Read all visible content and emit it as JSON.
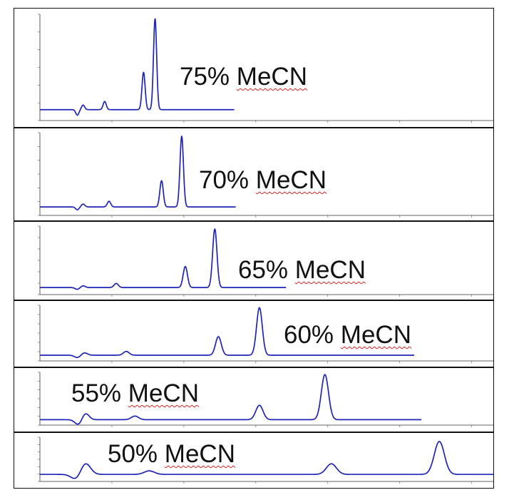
{
  "chart_data": [
    {
      "type": "line",
      "title": "75% MeCN",
      "title_parts": {
        "pct": "75%",
        "solvent": "MeCN"
      },
      "peaks": [
        {
          "x": 0.52,
          "y": -0.06
        },
        {
          "x": 0.6,
          "y": 0.05
        },
        {
          "x": 0.9,
          "y": 0.09
        },
        {
          "x": 1.44,
          "y": 0.41
        },
        {
          "x": 1.6,
          "y": 1.0
        }
      ],
      "xlim": [
        0,
        6.3
      ],
      "trace_end": 2.7,
      "ylim": [
        -0.12,
        1.05
      ],
      "peak_width": 0.022
    },
    {
      "type": "line",
      "title": "70% MeCN",
      "title_parts": {
        "pct": "70%",
        "solvent": "MeCN"
      },
      "peaks": [
        {
          "x": 0.52,
          "y": -0.04
        },
        {
          "x": 0.6,
          "y": 0.04
        },
        {
          "x": 0.96,
          "y": 0.08
        },
        {
          "x": 1.69,
          "y": 0.37
        },
        {
          "x": 1.97,
          "y": 1.0
        }
      ],
      "xlim": [
        0,
        6.3
      ],
      "trace_end": 2.72,
      "ylim": [
        -0.12,
        1.05
      ],
      "peak_width": 0.024
    },
    {
      "type": "line",
      "title": "65% MeCN",
      "title_parts": {
        "pct": "65%",
        "solvent": "MeCN"
      },
      "peaks": [
        {
          "x": 0.52,
          "y": -0.03
        },
        {
          "x": 0.6,
          "y": 0.03
        },
        {
          "x": 1.06,
          "y": 0.07
        },
        {
          "x": 2.02,
          "y": 0.36
        },
        {
          "x": 2.43,
          "y": 1.0
        }
      ],
      "xlim": [
        0,
        6.3
      ],
      "trace_end": 3.42,
      "ylim": [
        -0.12,
        1.05
      ],
      "peak_width": 0.03
    },
    {
      "type": "line",
      "title": "60% MeCN",
      "title_parts": {
        "pct": "60%",
        "solvent": "MeCN"
      },
      "peaks": [
        {
          "x": 0.52,
          "y": -0.05
        },
        {
          "x": 0.62,
          "y": 0.05
        },
        {
          "x": 1.2,
          "y": 0.08
        },
        {
          "x": 2.48,
          "y": 0.39
        },
        {
          "x": 3.05,
          "y": 1.0
        }
      ],
      "xlim": [
        0,
        6.3
      ],
      "trace_end": 5.2,
      "ylim": [
        -0.12,
        1.05
      ],
      "peak_width": 0.04
    },
    {
      "type": "line",
      "title": "55% MeCN",
      "title_parts": {
        "pct": "55%",
        "solvent": "MeCN"
      },
      "peaks": [
        {
          "x": 0.54,
          "y": -0.12
        },
        {
          "x": 0.63,
          "y": 0.15
        },
        {
          "x": 1.32,
          "y": 0.08
        },
        {
          "x": 3.05,
          "y": 0.32
        },
        {
          "x": 3.96,
          "y": 1.0
        }
      ],
      "xlim": [
        0,
        6.3
      ],
      "trace_end": 5.3,
      "ylim": [
        -0.12,
        1.05
      ],
      "peak_width": 0.05
    },
    {
      "type": "line",
      "title": "50% MeCN",
      "title_parts": {
        "pct": "50%",
        "solvent": "MeCN"
      },
      "peaks": [
        {
          "x": 0.51,
          "y": -0.16
        },
        {
          "x": 0.63,
          "y": 0.33
        },
        {
          "x": 1.52,
          "y": 0.1
        },
        {
          "x": 4.05,
          "y": 0.3
        },
        {
          "x": 5.55,
          "y": 0.93
        }
      ],
      "xlim": [
        0,
        6.3
      ],
      "trace_end": 6.3,
      "ylim": [
        -0.2,
        1.05
      ],
      "peak_width": 0.07
    }
  ],
  "colors": {
    "trace": "#1f24b8",
    "frame": "#111111",
    "underline": "#dd2222"
  }
}
